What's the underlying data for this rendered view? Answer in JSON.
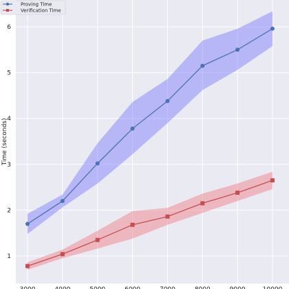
{
  "chart_data": {
    "type": "line",
    "title": "",
    "xlabel": "",
    "ylabel": "Time (seconds)",
    "x": [
      3000,
      4000,
      5000,
      6000,
      7000,
      8000,
      9000,
      10000
    ],
    "xticks": [
      "3000",
      "4000",
      "5000",
      "6000",
      "7000",
      "8000",
      "9000",
      "10000"
    ],
    "yticks": [
      "1",
      "2",
      "3",
      "4",
      "5",
      "6"
    ],
    "xlim": [
      2650,
      10350
    ],
    "ylim": [
      0.5,
      6.6
    ],
    "grid": true,
    "legend_position": "top-left",
    "background": "#eaeaf2",
    "series": [
      {
        "name": "Proving Time",
        "marker": "circle",
        "color": "#4c72b0",
        "band_color": "#8080ff",
        "values": [
          1.7,
          2.2,
          3.02,
          3.78,
          4.38,
          5.15,
          5.5,
          5.96
        ],
        "lower": [
          1.48,
          2.06,
          2.58,
          3.22,
          3.9,
          4.62,
          5.06,
          5.58
        ],
        "upper": [
          1.92,
          2.34,
          3.46,
          4.36,
          4.86,
          5.7,
          5.96,
          6.34
        ]
      },
      {
        "name": "Verification Time",
        "marker": "square",
        "color": "#c44e52",
        "band_color": "#ee8088",
        "values": [
          0.78,
          1.04,
          1.35,
          1.68,
          1.86,
          2.15,
          2.38,
          2.65
        ],
        "lower": [
          0.7,
          0.95,
          1.16,
          1.38,
          1.68,
          1.94,
          2.2,
          2.46
        ],
        "upper": [
          0.86,
          1.14,
          1.55,
          1.98,
          2.05,
          2.36,
          2.58,
          2.84
        ]
      }
    ]
  }
}
